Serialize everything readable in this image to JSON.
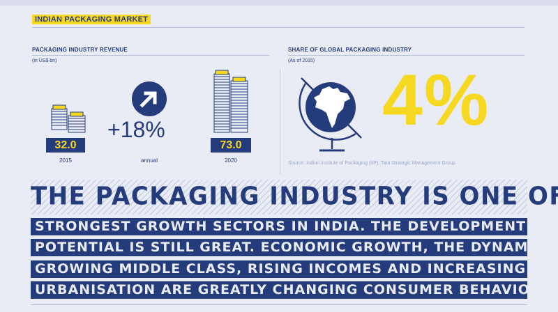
{
  "header": {
    "title": "INDIAN PACKAGING MARKET"
  },
  "revenue": {
    "title": "PACKAGING INDUSTRY REVENUE",
    "unit": "(in US$ bn)",
    "values": [
      {
        "value": "32.0",
        "year": "2015"
      },
      {
        "value": "73.0",
        "year": "2020"
      }
    ],
    "growth": "+18%",
    "growth_label": "annual",
    "icons": [
      "money-stack-icon",
      "arrow-up-right-icon"
    ]
  },
  "global_share": {
    "title": "SHARE OF GLOBAL PACKAGING INDUSTRY",
    "subtitle": "(As of 2015)",
    "percent": "4%",
    "icon": "globe-india-icon",
    "source": "Source: Indian Institute of Packaging (IIP), Tata Strategic Management Group"
  },
  "headline": {
    "line1": "THE PACKAGING INDUSTRY IS ONE OF THE",
    "lines": [
      "STRONGEST GROWTH SECTORS IN INDIA. THE DEVELOPMENT",
      "POTENTIAL IS STILL GREAT. ECONOMIC GROWTH, THE DYNAMICALLY",
      "GROWING MIDDLE CLASS, RISING INCOMES AND INCREASING",
      "URBANISATION ARE GREATLY CHANGING CONSUMER BEHAVIOUR."
    ]
  },
  "colors": {
    "navy": "#243b7c",
    "yellow": "#f5d81f",
    "background": "#e9ecf4"
  }
}
